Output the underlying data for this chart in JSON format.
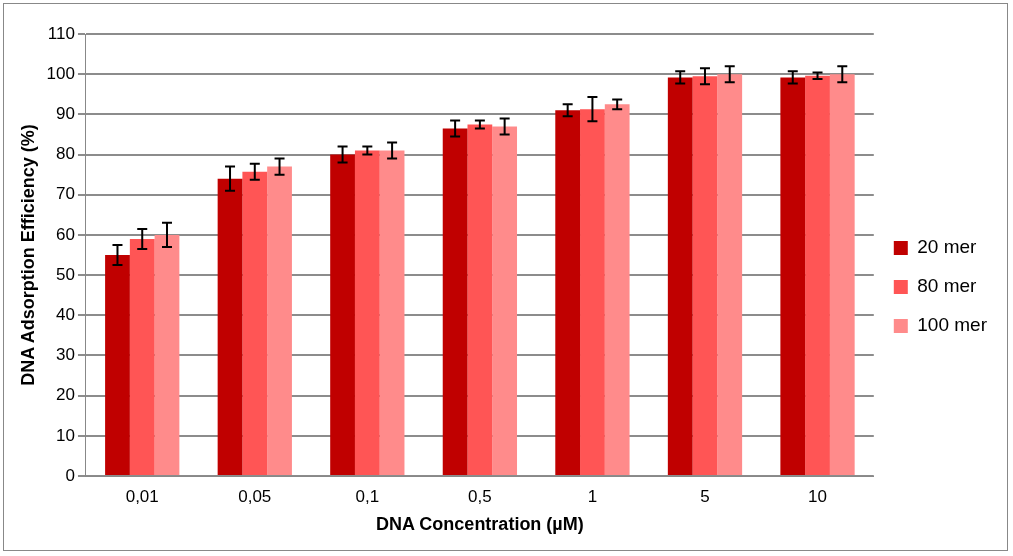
{
  "chart_data": {
    "type": "bar",
    "xlabel": "DNA Concentration (µM)",
    "ylabel": "DNA Adsorption Efficiency (%)",
    "categories": [
      "0,01",
      "0,05",
      "0,1",
      "0,5",
      "1",
      "5",
      "10"
    ],
    "series": [
      {
        "name": "20 mer",
        "color": "#c00000",
        "values": [
          55,
          74,
          80,
          86.5,
          91,
          99.2,
          99.2
        ],
        "errors": [
          2.5,
          3,
          2,
          2,
          1.5,
          1.5,
          1.5
        ]
      },
      {
        "name": "80 mer",
        "color": "#ff5555",
        "values": [
          59,
          75.7,
          81,
          87.5,
          91.3,
          99.5,
          99.6
        ],
        "errors": [
          2.5,
          2,
          1,
          1,
          3,
          2,
          0.8
        ]
      },
      {
        "name": "100 mer",
        "color": "#ff8b8b",
        "values": [
          60,
          77,
          81,
          87,
          92.5,
          100,
          100
        ],
        "errors": [
          3,
          2,
          2,
          2,
          1.2,
          2,
          2
        ]
      }
    ],
    "ylim": [
      0,
      110
    ],
    "yticks": [
      0,
      10,
      20,
      30,
      40,
      50,
      60,
      70,
      80,
      90,
      100,
      110
    ],
    "grid": "y",
    "legend": "right"
  }
}
